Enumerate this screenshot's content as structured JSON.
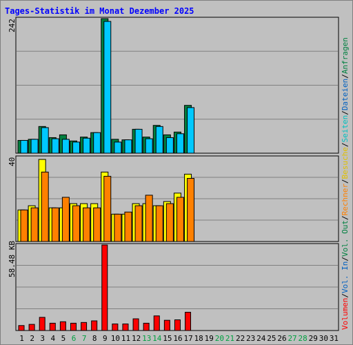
{
  "title": "Tages-Statistik im Monat Dezember 2025",
  "days": [
    "1",
    "2",
    "3",
    "4",
    "5",
    "6",
    "7",
    "8",
    "9",
    "10",
    "11",
    "12",
    "13",
    "14",
    "15",
    "16",
    "17",
    "18",
    "19",
    "20",
    "21",
    "22",
    "23",
    "24",
    "25",
    "26",
    "27",
    "28",
    "29",
    "30",
    "31"
  ],
  "weekend_days": [
    "6",
    "7",
    "13",
    "14",
    "20",
    "21",
    "27",
    "28"
  ],
  "colors": {
    "background": "#c0c0c0",
    "title": "#0000ff",
    "anfragen": "#008040",
    "dateien": "#00c8ff",
    "seiten": "#ffff00",
    "besuche": "#ff8000",
    "volumen": "#ff0000",
    "weekday_label": "#000000",
    "weekend_label": "#00a040",
    "legend_anfragen": "#008040",
    "legend_dateien": "#0060c0",
    "legend_seiten": "#00c0c0",
    "legend_besuche": "#e0c000",
    "legend_rechner": "#ff8000",
    "legend_volout": "#008040",
    "legend_volin": "#0060c0",
    "legend_volumen": "#ff0000"
  },
  "legend": {
    "items": [
      "Volumen",
      "Vol. In",
      "Vol. Out",
      "Rechner",
      "Besuche",
      "Seiten",
      "Dateien",
      "Anfragen"
    ],
    "separator": "/"
  },
  "chart_data": [
    {
      "type": "bar",
      "name": "top-panel",
      "max_label": "242",
      "ylim": [
        0,
        242
      ],
      "series": [
        {
          "name": "Anfragen",
          "values": [
            23,
            25,
            48,
            28,
            33,
            22,
            29,
            37,
            242,
            25,
            24,
            43,
            29,
            50,
            33,
            38,
            86,
            0,
            0,
            0,
            0,
            0,
            0,
            0,
            0,
            0,
            0,
            0,
            0,
            0,
            0
          ]
        },
        {
          "name": "Dateien",
          "values": [
            23,
            25,
            46,
            26,
            25,
            20,
            27,
            37,
            237,
            20,
            24,
            43,
            26,
            48,
            28,
            35,
            82,
            0,
            0,
            0,
            0,
            0,
            0,
            0,
            0,
            0,
            0,
            0,
            0,
            0,
            0
          ]
        }
      ]
    },
    {
      "type": "bar",
      "name": "middle-panel",
      "max_label": "40",
      "ylim": [
        0,
        40
      ],
      "series": [
        {
          "name": "Seiten",
          "values": [
            15,
            17,
            39,
            16,
            16,
            18,
            18,
            18,
            33,
            13,
            13,
            18,
            18,
            17,
            19,
            23,
            32,
            0,
            0,
            0,
            0,
            0,
            0,
            0,
            0,
            0,
            0,
            0,
            0,
            0,
            0
          ]
        },
        {
          "name": "Besuche",
          "values": [
            15,
            16,
            33,
            16,
            21,
            17,
            16,
            16,
            31,
            13,
            14,
            17,
            22,
            17,
            18,
            21,
            30,
            0,
            0,
            0,
            0,
            0,
            0,
            0,
            0,
            0,
            0,
            0,
            0,
            0,
            0
          ]
        }
      ]
    },
    {
      "type": "bar",
      "name": "bottom-panel",
      "max_label": "58.48 KB",
      "ylim": [
        0,
        58.48
      ],
      "series": [
        {
          "name": "Volumen",
          "values": [
            3.4,
            4.2,
            9.0,
            5.0,
            6.0,
            5.0,
            5.5,
            6.6,
            58.48,
            4.5,
            4.5,
            8.0,
            5.0,
            10.0,
            7.0,
            7.3,
            12.5,
            0,
            0,
            0,
            0,
            0,
            0,
            0,
            0,
            0,
            0,
            0,
            0,
            0,
            0
          ]
        }
      ]
    }
  ]
}
